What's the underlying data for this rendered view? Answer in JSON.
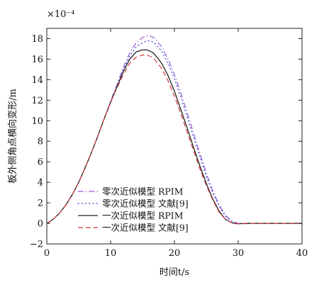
{
  "chart_data": {
    "type": "line",
    "xlabel": "时间t/s",
    "ylabel": "板外侧角点横向变形/m",
    "y_multiplier": "×10⁻⁴",
    "xlim": [
      0,
      40
    ],
    "ylim": [
      -2,
      19
    ],
    "xticks": [
      0,
      10,
      20,
      30,
      40
    ],
    "yticks": [
      -2,
      0,
      2,
      4,
      6,
      8,
      10,
      12,
      14,
      16,
      18
    ],
    "grid": false,
    "legend_position": "lower-left",
    "series": [
      {
        "name": "零次近似模型 RPIM",
        "color": "#9b59d6",
        "dash": "dashdot",
        "x": [
          0,
          1,
          2,
          3,
          4,
          5,
          6,
          7,
          8,
          9,
          10,
          11,
          12,
          13,
          14,
          15,
          15.8,
          16.5,
          17,
          18,
          19,
          20,
          21,
          22,
          23,
          24,
          25,
          26,
          27,
          28,
          29,
          30,
          31,
          32,
          35,
          40
        ],
        "y": [
          0,
          0.4,
          1.0,
          1.8,
          2.8,
          4.0,
          5.4,
          6.9,
          8.5,
          10.2,
          11.9,
          13.5,
          15.2,
          16.6,
          17.6,
          18.1,
          18.3,
          18.2,
          18.0,
          17.2,
          16.0,
          14.5,
          12.7,
          10.8,
          8.8,
          6.8,
          4.9,
          3.2,
          1.8,
          0.8,
          0.2,
          0,
          -0.05,
          0,
          0,
          0
        ]
      },
      {
        "name": "零次近似模型 文献[9]",
        "color": "#3a4bd8",
        "dash": "dotted",
        "x": [
          0,
          1,
          2,
          3,
          4,
          5,
          6,
          7,
          8,
          9,
          10,
          11,
          12,
          13,
          14,
          15,
          15.8,
          16.5,
          17,
          18,
          19,
          20,
          21,
          22,
          23,
          24,
          25,
          26,
          27,
          28,
          29,
          30,
          31,
          32,
          35,
          40
        ],
        "y": [
          0,
          0.4,
          1.0,
          1.8,
          2.8,
          4.0,
          5.4,
          6.9,
          8.5,
          10.2,
          11.8,
          13.4,
          15.0,
          16.3,
          17.2,
          17.6,
          17.8,
          17.7,
          17.5,
          16.8,
          15.6,
          14.1,
          12.3,
          10.4,
          8.4,
          6.5,
          4.6,
          3.0,
          1.7,
          0.7,
          0.2,
          0,
          -0.05,
          0,
          0,
          0
        ]
      },
      {
        "name": "一次近似模型 RPIM",
        "color": "#222222",
        "dash": "solid",
        "x": [
          0,
          1,
          2,
          3,
          4,
          5,
          6,
          7,
          8,
          9,
          10,
          11,
          12,
          13,
          14,
          15,
          15.7,
          16.5,
          17,
          18,
          19,
          20,
          21,
          22,
          23,
          24,
          25,
          26,
          27,
          28,
          29,
          30,
          31,
          32,
          35,
          40
        ],
        "y": [
          0,
          0.4,
          1.0,
          1.8,
          2.8,
          4.0,
          5.4,
          6.9,
          8.5,
          10.2,
          11.8,
          13.3,
          14.8,
          16.0,
          16.7,
          16.9,
          16.9,
          16.7,
          16.4,
          15.6,
          14.4,
          12.9,
          11.1,
          9.3,
          7.4,
          5.6,
          3.9,
          2.4,
          1.2,
          0.4,
          0.05,
          -0.05,
          0,
          0,
          0,
          0
        ]
      },
      {
        "name": "一次近似模型 文献[9]",
        "color": "#d83a3a",
        "dash": "dashed",
        "x": [
          0,
          1,
          2,
          3,
          4,
          5,
          6,
          7,
          8,
          9,
          10,
          11,
          12,
          13,
          14,
          15,
          15.7,
          16.5,
          17,
          18,
          19,
          20,
          21,
          22,
          23,
          24,
          25,
          26,
          27,
          28,
          29,
          30,
          31,
          32,
          35,
          40
        ],
        "y": [
          0,
          0.4,
          1.0,
          1.8,
          2.8,
          4.0,
          5.4,
          6.9,
          8.5,
          10.2,
          11.8,
          13.2,
          14.5,
          15.6,
          16.2,
          16.4,
          16.4,
          16.2,
          15.9,
          15.1,
          13.9,
          12.4,
          10.7,
          8.9,
          7.1,
          5.3,
          3.7,
          2.3,
          1.1,
          0.4,
          0.05,
          -0.05,
          0,
          0,
          0,
          0
        ]
      }
    ]
  }
}
